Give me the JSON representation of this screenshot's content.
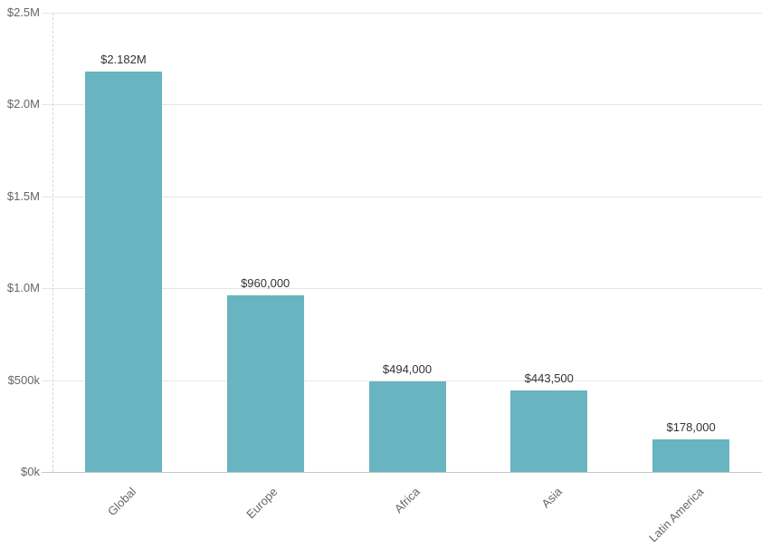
{
  "chart_data": {
    "type": "bar",
    "title": "",
    "categories": [
      "Global",
      "Europe",
      "Africa",
      "Asia",
      "Latin America"
    ],
    "values": [
      2182000,
      960000,
      494000,
      443500,
      178000
    ],
    "value_labels": [
      "$2.182M",
      "$960,000",
      "$494,000",
      "$443,500",
      "$178,000"
    ],
    "y_axis": {
      "range": [
        0,
        2500000
      ],
      "ticks": [
        {
          "value": 0,
          "label": "$0k"
        },
        {
          "value": 500000,
          "label": "$500k"
        },
        {
          "value": 1000000,
          "label": "$1.0M"
        },
        {
          "value": 1500000,
          "label": "$1.5M"
        },
        {
          "value": 2000000,
          "label": "$2.0M"
        },
        {
          "value": 2500000,
          "label": "$2.5M"
        }
      ]
    },
    "x_axis": {
      "label_rotation_deg": -45
    },
    "grid": "horizontal",
    "legend": "none"
  },
  "colors": {
    "bar": "#68b4c1",
    "grid_line": "#e6e6e6",
    "axis_line": "#c8c8c8",
    "dashed_axis_line": "#d6d6d6",
    "tick_label": "#666666",
    "category_label": "#666666",
    "value_label": "#333333",
    "background": "#ffffff"
  }
}
